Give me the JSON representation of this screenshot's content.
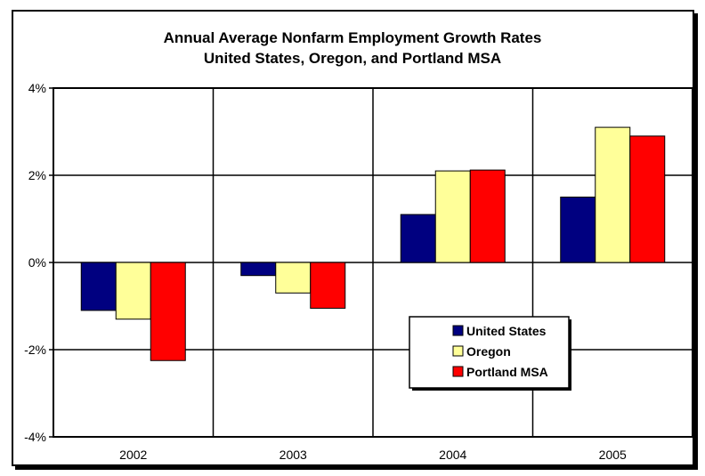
{
  "chart_data": {
    "type": "bar",
    "title": "Annual Average Nonfarm Employment Growth Rates",
    "subtitle": "United States, Oregon, and Portland MSA",
    "categories": [
      "2002",
      "2003",
      "2004",
      "2005"
    ],
    "series": [
      {
        "name": "United States",
        "values": [
          -1.1,
          -0.3,
          1.1,
          1.5
        ],
        "color": "#000080"
      },
      {
        "name": "Oregon",
        "values": [
          -1.3,
          -0.7,
          2.1,
          3.1
        ],
        "color": "#FFFF99"
      },
      {
        "name": "Portland MSA",
        "values": [
          -2.25,
          -1.05,
          2.12,
          2.9
        ],
        "color": "#FF0000"
      }
    ],
    "ylim": [
      -4,
      4
    ],
    "yticks": [
      4,
      2,
      0,
      -2,
      -4
    ],
    "ytick_labels": [
      "4%",
      "2%",
      "0%",
      "-2%",
      "-4%"
    ],
    "xlabel": "",
    "ylabel": "",
    "grid": true,
    "legend_position": "lower-right inside plot"
  }
}
